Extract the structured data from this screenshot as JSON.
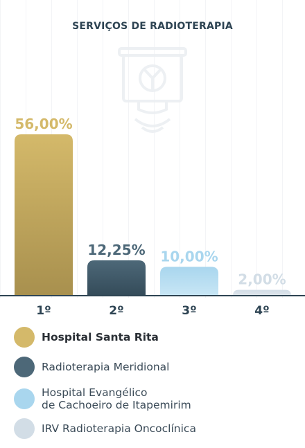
{
  "chart_data": {
    "type": "bar",
    "title": "SERVIÇOS DE RADIOTERAPIA",
    "categories": [
      "1º",
      "2º",
      "3º",
      "4º"
    ],
    "values": [
      56.0,
      12.25,
      10.0,
      2.0
    ],
    "value_labels": [
      "56,00%",
      "12,25%",
      "10,00%",
      "2,00%"
    ],
    "ylim": [
      0,
      60
    ],
    "grid": false,
    "legend_position": "bottom",
    "colors": [
      "#d4b96a",
      "#4d6878",
      "#a9d6ee",
      "#d2dde6"
    ],
    "legend": [
      {
        "label": "Hospital Santa Rita",
        "color": "#d4b96a",
        "bold": true
      },
      {
        "label": "Radioterapia Meridional",
        "color": "#4d6878",
        "bold": false
      },
      {
        "label": "Hospital Evangélico\nde Cachoeiro de Itapemirim",
        "color": "#a9d6ee",
        "bold": false
      },
      {
        "label": "IRV Radioterapia Oncoclínica",
        "color": "#d2dde6",
        "bold": false
      }
    ]
  },
  "colors": {
    "bar_gradient_ends": [
      "#a8904e",
      "#344b59",
      "#c8e6f5",
      "#dfe6ec"
    ],
    "label_colors": [
      "#d4b96a",
      "#4d6878",
      "#a9d6ee",
      "#d2dde6"
    ],
    "axis": "#2e4453"
  },
  "watermark_icon": "radiation-machine-icon"
}
